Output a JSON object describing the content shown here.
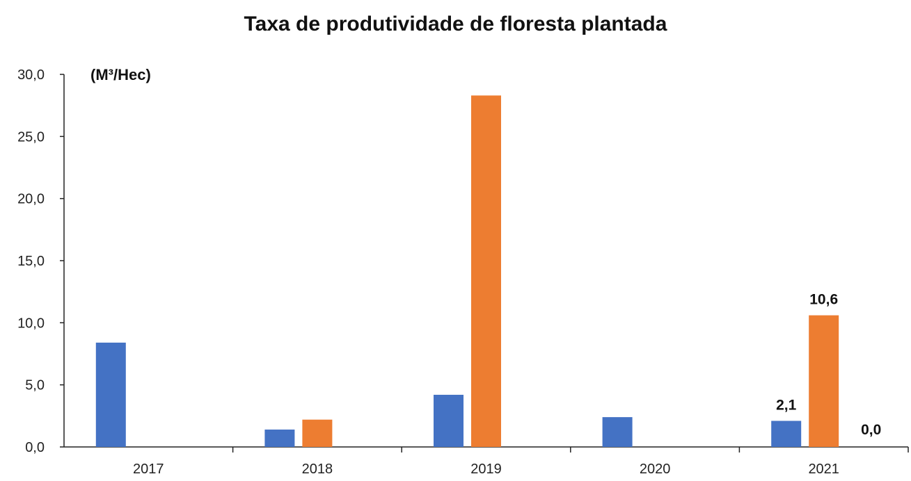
{
  "chart_data": {
    "type": "bar",
    "title": "Taxa de produtividade de floresta plantada",
    "unit_label": "(M³/Hec)",
    "xlabel": "",
    "ylabel": "",
    "categories": [
      "2017",
      "2018",
      "2019",
      "2020",
      "2021"
    ],
    "series": [
      {
        "color": "#4472C4",
        "values": [
          8.4,
          1.4,
          4.2,
          2.4,
          2.1
        ]
      },
      {
        "color": "#ED7D31",
        "values": [
          null,
          2.2,
          28.3,
          null,
          10.6
        ]
      }
    ],
    "ylim": [
      0,
      30
    ],
    "yticks": [
      "0,0",
      "5,0",
      "10,0",
      "15,0",
      "20,0",
      "25,0",
      "30,0"
    ],
    "data_labels": [
      {
        "category": "2021",
        "series": 0,
        "text": "2,1"
      },
      {
        "category": "2021",
        "series": 1,
        "text": "10,6"
      },
      {
        "category": "2021",
        "series": 2,
        "text": "0,0"
      }
    ],
    "grid": false,
    "legend": "none"
  }
}
